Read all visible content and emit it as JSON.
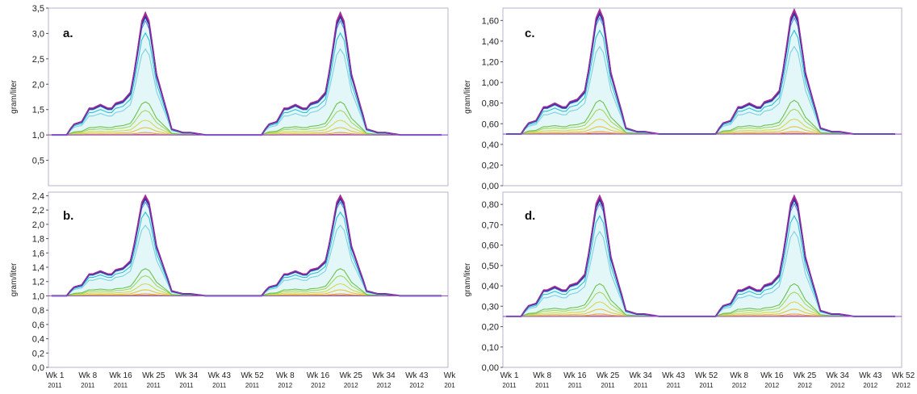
{
  "chart_data": [
    {
      "panel_label": "a.",
      "type": "line",
      "ylabel": "gram/liter",
      "ylim": [
        0.0,
        3.5
      ],
      "yticks": [
        "0,5",
        "1,0",
        "1,5",
        "2,0",
        "2,5",
        "3,0",
        "3,5"
      ],
      "ytick_values": [
        0.5,
        1.0,
        1.5,
        2.0,
        2.5,
        3.0,
        3.5
      ],
      "baseline": 1.0,
      "peak": 3.42,
      "x_axis_shown": false
    },
    {
      "panel_label": "b.",
      "type": "line",
      "ylabel": "gram/liter",
      "ylim": [
        0.0,
        2.45
      ],
      "yticks": [
        "0,0",
        "0,2",
        "0,4",
        "0,6",
        "0,8",
        "1,0",
        "1,2",
        "1,4",
        "1,6",
        "1,8",
        "2,0",
        "2,2",
        "2,4"
      ],
      "ytick_values": [
        0.0,
        0.2,
        0.4,
        0.6,
        0.8,
        1.0,
        1.2,
        1.4,
        1.6,
        1.8,
        2.0,
        2.2,
        2.4
      ],
      "baseline": 1.0,
      "peak": 2.41,
      "x_axis_shown": true,
      "xticks": [
        {
          "week": "Wk 1",
          "year": "2011"
        },
        {
          "week": "Wk 8",
          "year": "2011"
        },
        {
          "week": "Wk 16",
          "year": "2011"
        },
        {
          "week": "Wk 25",
          "year": "2011"
        },
        {
          "week": "Wk 34",
          "year": "2011"
        },
        {
          "week": "Wk 43",
          "year": "2011"
        },
        {
          "week": "Wk 52",
          "year": "2011"
        },
        {
          "week": "Wk 8",
          "year": "2012"
        },
        {
          "week": "Wk 16",
          "year": "2012"
        },
        {
          "week": "Wk 25",
          "year": "2012"
        },
        {
          "week": "Wk 34",
          "year": "2012"
        },
        {
          "week": "Wk 43",
          "year": "2012"
        },
        {
          "week": "Wk",
          "year": "201"
        }
      ]
    },
    {
      "panel_label": "c.",
      "type": "line",
      "ylabel": "gram/liter",
      "ylim": [
        0.0,
        1.72
      ],
      "yticks": [
        "0,00",
        "0,20",
        "0,40",
        "0,60",
        "0,80",
        "1,00",
        "1,20",
        "1,40",
        "1,60"
      ],
      "ytick_values": [
        0.0,
        0.2,
        0.4,
        0.6,
        0.8,
        1.0,
        1.2,
        1.4,
        1.6
      ],
      "baseline": 0.5,
      "peak": 1.71,
      "x_axis_shown": false
    },
    {
      "panel_label": "d.",
      "type": "line",
      "ylabel": "gram/liter",
      "ylim": [
        0.0,
        0.86
      ],
      "yticks": [
        "0,00",
        "0,10",
        "0,20",
        "0,30",
        "0,40",
        "0,50",
        "0,60",
        "0,70",
        "0,80"
      ],
      "ytick_values": [
        0.0,
        0.1,
        0.2,
        0.3,
        0.4,
        0.5,
        0.6,
        0.7,
        0.8
      ],
      "baseline": 0.25,
      "peak": 0.845,
      "x_axis_shown": true,
      "xticks": [
        {
          "week": "Wk 1",
          "year": "2011"
        },
        {
          "week": "Wk 8",
          "year": "2011"
        },
        {
          "week": "Wk 16",
          "year": "2011"
        },
        {
          "week": "Wk 25",
          "year": "2011"
        },
        {
          "week": "Wk 34",
          "year": "2011"
        },
        {
          "week": "Wk 43",
          "year": "2011"
        },
        {
          "week": "Wk 52",
          "year": "2011"
        },
        {
          "week": "Wk 8",
          "year": "2012"
        },
        {
          "week": "Wk 16",
          "year": "2012"
        },
        {
          "week": "Wk 25",
          "year": "2012"
        },
        {
          "week": "Wk 34",
          "year": "2012"
        },
        {
          "week": "Wk 43",
          "year": "2012"
        },
        {
          "week": "Wk 52",
          "year": "2012"
        }
      ]
    }
  ],
  "shared_profile": {
    "description_units": "fraction of (peak - baseline) above baseline, per week index 0..104",
    "x_weeks": [
      0,
      4,
      5,
      6,
      8,
      10,
      11,
      13,
      15,
      16,
      17,
      19,
      21,
      22,
      23,
      24,
      25,
      26,
      27,
      28,
      30,
      31,
      32,
      34,
      35,
      36,
      37,
      41,
      44,
      51,
      52
    ],
    "top_fraction": [
      0.0,
      0.0,
      0.05,
      0.09,
      0.11,
      0.22,
      0.22,
      0.25,
      0.22,
      0.22,
      0.26,
      0.28,
      0.35,
      0.52,
      0.72,
      0.93,
      1.0,
      0.93,
      0.72,
      0.5,
      0.28,
      0.17,
      0.05,
      0.03,
      0.02,
      0.02,
      0.02,
      0.0,
      0.0,
      0.0,
      0.0
    ],
    "series": [
      {
        "color": "#9b2fa8",
        "scale": 1.0
      },
      {
        "color": "#c81e6e",
        "scale": 0.985
      },
      {
        "color": "#2236a8",
        "scale": 0.965
      },
      {
        "color": "#5a8cd8",
        "scale": 0.93
      },
      {
        "color": "#2ebfd6",
        "scale": 0.83
      },
      {
        "color": "#7fd0e0",
        "scale": 0.7
      },
      {
        "color": "#6cc24a",
        "scale": 0.27
      },
      {
        "color": "#a7d65b",
        "scale": 0.2
      },
      {
        "color": "#d9d64a",
        "scale": 0.12
      },
      {
        "color": "#e8c43a",
        "scale": 0.06
      },
      {
        "color": "#f0a030",
        "scale": 0.02
      },
      {
        "color": "#e8602a",
        "scale": 0.005
      }
    ],
    "baseline_color": "#9b59d0",
    "fill_color": "#d7f3f7"
  }
}
